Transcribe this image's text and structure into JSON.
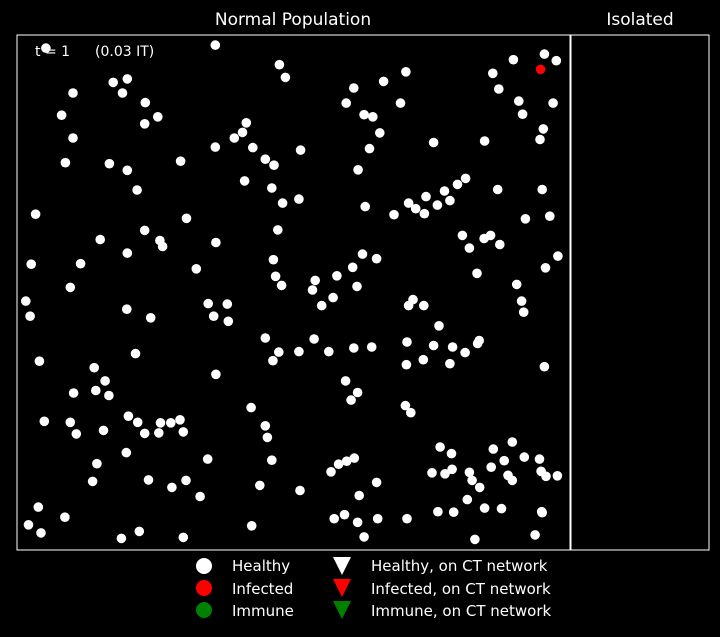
{
  "chart_data": {
    "type": "scatter",
    "panels": {
      "population_title": "Normal Population",
      "isolated_title": "Isolated"
    },
    "time_label": "t = 1",
    "time_fraction": "(0.03 IT)",
    "colors": {
      "background": "#000000",
      "healthy": "#ffffff",
      "infected": "#ff0000",
      "immune": "#008000",
      "frame": "#ffffff"
    },
    "legend": [
      {
        "label": "Healthy",
        "marker": "circle",
        "color": "#ffffff"
      },
      {
        "label": "Infected",
        "marker": "circle",
        "color": "#ff0000"
      },
      {
        "label": "Immune",
        "marker": "circle",
        "color": "#008000"
      },
      {
        "label": "Healthy, on CT network",
        "marker": "triangle",
        "color": "#ffffff"
      },
      {
        "label": "Infected, on CT network",
        "marker": "triangle",
        "color": "#ff0000"
      },
      {
        "label": "Immune, on CT network",
        "marker": "triangle",
        "color": "#008000"
      }
    ],
    "xlim": [
      0,
      1
    ],
    "ylim": [
      0,
      1
    ],
    "isolated_count": 0,
    "points": [
      {
        "x": 0.044,
        "y": 0.984,
        "s": "healthy"
      },
      {
        "x": 0.356,
        "y": 0.99,
        "s": "healthy"
      },
      {
        "x": 0.962,
        "y": 0.972,
        "s": "healthy"
      },
      {
        "x": 0.984,
        "y": 0.959,
        "s": "healthy"
      },
      {
        "x": 0.905,
        "y": 0.961,
        "s": "healthy"
      },
      {
        "x": 0.955,
        "y": 0.942,
        "s": "infected"
      },
      {
        "x": 0.474,
        "y": 0.951,
        "s": "healthy"
      },
      {
        "x": 0.485,
        "y": 0.926,
        "s": "healthy"
      },
      {
        "x": 0.867,
        "y": 0.934,
        "s": "healthy"
      },
      {
        "x": 0.707,
        "y": 0.937,
        "s": "healthy"
      },
      {
        "x": 0.194,
        "y": 0.923,
        "s": "healthy"
      },
      {
        "x": 0.168,
        "y": 0.916,
        "s": "healthy"
      },
      {
        "x": 0.611,
        "y": 0.905,
        "s": "healthy"
      },
      {
        "x": 0.666,
        "y": 0.918,
        "s": "healthy"
      },
      {
        "x": 0.185,
        "y": 0.895,
        "s": "healthy"
      },
      {
        "x": 0.094,
        "y": 0.895,
        "s": "healthy"
      },
      {
        "x": 0.878,
        "y": 0.903,
        "s": "healthy"
      },
      {
        "x": 0.915,
        "y": 0.879,
        "s": "healthy"
      },
      {
        "x": 0.978,
        "y": 0.875,
        "s": "healthy"
      },
      {
        "x": 0.227,
        "y": 0.876,
        "s": "healthy"
      },
      {
        "x": 0.597,
        "y": 0.875,
        "s": "healthy"
      },
      {
        "x": 0.697,
        "y": 0.875,
        "s": "healthy"
      },
      {
        "x": 0.63,
        "y": 0.852,
        "s": "healthy"
      },
      {
        "x": 0.922,
        "y": 0.853,
        "s": "healthy"
      },
      {
        "x": 0.073,
        "y": 0.851,
        "s": "healthy"
      },
      {
        "x": 0.25,
        "y": 0.848,
        "s": "healthy"
      },
      {
        "x": 0.226,
        "y": 0.834,
        "s": "healthy"
      },
      {
        "x": 0.646,
        "y": 0.848,
        "s": "healthy"
      },
      {
        "x": 0.413,
        "y": 0.836,
        "s": "healthy"
      },
      {
        "x": 0.406,
        "y": 0.817,
        "s": "healthy"
      },
      {
        "x": 0.659,
        "y": 0.816,
        "s": "healthy"
      },
      {
        "x": 0.96,
        "y": 0.824,
        "s": "healthy"
      },
      {
        "x": 0.094,
        "y": 0.806,
        "s": "healthy"
      },
      {
        "x": 0.391,
        "y": 0.806,
        "s": "healthy"
      },
      {
        "x": 0.852,
        "y": 0.8,
        "s": "healthy"
      },
      {
        "x": 0.954,
        "y": 0.803,
        "s": "healthy"
      },
      {
        "x": 0.758,
        "y": 0.797,
        "s": "healthy"
      },
      {
        "x": 0.425,
        "y": 0.787,
        "s": "healthy"
      },
      {
        "x": 0.356,
        "y": 0.788,
        "s": "healthy"
      },
      {
        "x": 0.64,
        "y": 0.785,
        "s": "healthy"
      },
      {
        "x": 0.448,
        "y": 0.764,
        "s": "healthy"
      },
      {
        "x": 0.513,
        "y": 0.782,
        "s": "healthy"
      },
      {
        "x": 0.08,
        "y": 0.757,
        "s": "healthy"
      },
      {
        "x": 0.292,
        "y": 0.76,
        "s": "healthy"
      },
      {
        "x": 0.464,
        "y": 0.752,
        "s": "healthy"
      },
      {
        "x": 0.161,
        "y": 0.755,
        "s": "healthy"
      },
      {
        "x": 0.194,
        "y": 0.742,
        "s": "healthy"
      },
      {
        "x": 0.619,
        "y": 0.743,
        "s": "healthy"
      },
      {
        "x": 0.817,
        "y": 0.726,
        "s": "healthy"
      },
      {
        "x": 0.802,
        "y": 0.714,
        "s": "healthy"
      },
      {
        "x": 0.41,
        "y": 0.721,
        "s": "healthy"
      },
      {
        "x": 0.46,
        "y": 0.707,
        "s": "healthy"
      },
      {
        "x": 0.778,
        "y": 0.701,
        "s": "healthy"
      },
      {
        "x": 0.876,
        "y": 0.704,
        "s": "healthy"
      },
      {
        "x": 0.958,
        "y": 0.704,
        "s": "healthy"
      },
      {
        "x": 0.212,
        "y": 0.703,
        "s": "healthy"
      },
      {
        "x": 0.744,
        "y": 0.69,
        "s": "healthy"
      },
      {
        "x": 0.48,
        "y": 0.677,
        "s": "healthy"
      },
      {
        "x": 0.632,
        "y": 0.67,
        "s": "healthy"
      },
      {
        "x": 0.712,
        "y": 0.677,
        "s": "healthy"
      },
      {
        "x": 0.51,
        "y": 0.685,
        "s": "healthy"
      },
      {
        "x": 0.725,
        "y": 0.666,
        "s": "healthy"
      },
      {
        "x": 0.765,
        "y": 0.673,
        "s": "healthy"
      },
      {
        "x": 0.788,
        "y": 0.682,
        "s": "healthy"
      },
      {
        "x": 0.025,
        "y": 0.655,
        "s": "healthy"
      },
      {
        "x": 0.685,
        "y": 0.654,
        "s": "healthy"
      },
      {
        "x": 0.741,
        "y": 0.656,
        "s": "healthy"
      },
      {
        "x": 0.972,
        "y": 0.651,
        "s": "healthy"
      },
      {
        "x": 0.927,
        "y": 0.646,
        "s": "healthy"
      },
      {
        "x": 0.303,
        "y": 0.647,
        "s": "healthy"
      },
      {
        "x": 0.471,
        "y": 0.624,
        "s": "healthy"
      },
      {
        "x": 0.226,
        "y": 0.623,
        "s": "healthy"
      },
      {
        "x": 0.863,
        "y": 0.613,
        "s": "healthy"
      },
      {
        "x": 0.254,
        "y": 0.603,
        "s": "healthy"
      },
      {
        "x": 0.851,
        "y": 0.607,
        "s": "healthy"
      },
      {
        "x": 0.811,
        "y": 0.613,
        "s": "healthy"
      },
      {
        "x": 0.88,
        "y": 0.595,
        "s": "healthy"
      },
      {
        "x": 0.144,
        "y": 0.605,
        "s": "healthy"
      },
      {
        "x": 0.259,
        "y": 0.591,
        "s": "healthy"
      },
      {
        "x": 0.357,
        "y": 0.599,
        "s": "healthy"
      },
      {
        "x": 0.824,
        "y": 0.588,
        "s": "healthy"
      },
      {
        "x": 0.194,
        "y": 0.578,
        "s": "healthy"
      },
      {
        "x": 0.627,
        "y": 0.576,
        "s": "healthy"
      },
      {
        "x": 0.987,
        "y": 0.572,
        "s": "healthy"
      },
      {
        "x": 0.463,
        "y": 0.565,
        "s": "healthy"
      },
      {
        "x": 0.017,
        "y": 0.556,
        "s": "healthy"
      },
      {
        "x": 0.108,
        "y": 0.557,
        "s": "healthy"
      },
      {
        "x": 0.964,
        "y": 0.549,
        "s": "healthy"
      },
      {
        "x": 0.609,
        "y": 0.55,
        "s": "healthy"
      },
      {
        "x": 0.653,
        "y": 0.567,
        "s": "healthy"
      },
      {
        "x": 0.321,
        "y": 0.547,
        "s": "healthy"
      },
      {
        "x": 0.838,
        "y": 0.538,
        "s": "healthy"
      },
      {
        "x": 0.467,
        "y": 0.532,
        "s": "healthy"
      },
      {
        "x": 0.54,
        "y": 0.524,
        "s": "healthy"
      },
      {
        "x": 0.58,
        "y": 0.533,
        "s": "healthy"
      },
      {
        "x": 0.617,
        "y": 0.512,
        "s": "healthy"
      },
      {
        "x": 0.911,
        "y": 0.516,
        "s": "healthy"
      },
      {
        "x": 0.478,
        "y": 0.514,
        "s": "healthy"
      },
      {
        "x": 0.007,
        "y": 0.483,
        "s": "healthy"
      },
      {
        "x": 0.089,
        "y": 0.51,
        "s": "healthy"
      },
      {
        "x": 0.535,
        "y": 0.505,
        "s": "healthy"
      },
      {
        "x": 0.92,
        "y": 0.483,
        "s": "healthy"
      },
      {
        "x": 0.573,
        "y": 0.49,
        "s": "healthy"
      },
      {
        "x": 0.72,
        "y": 0.486,
        "s": "healthy"
      },
      {
        "x": 0.712,
        "y": 0.474,
        "s": "healthy"
      },
      {
        "x": 0.74,
        "y": 0.474,
        "s": "healthy"
      },
      {
        "x": 0.343,
        "y": 0.478,
        "s": "healthy"
      },
      {
        "x": 0.378,
        "y": 0.477,
        "s": "healthy"
      },
      {
        "x": 0.552,
        "y": 0.474,
        "s": "healthy"
      },
      {
        "x": 0.193,
        "y": 0.467,
        "s": "healthy"
      },
      {
        "x": 0.015,
        "y": 0.453,
        "s": "healthy"
      },
      {
        "x": 0.924,
        "y": 0.461,
        "s": "healthy"
      },
      {
        "x": 0.353,
        "y": 0.453,
        "s": "healthy"
      },
      {
        "x": 0.237,
        "y": 0.45,
        "s": "healthy"
      },
      {
        "x": 0.38,
        "y": 0.443,
        "s": "healthy"
      },
      {
        "x": 0.768,
        "y": 0.434,
        "s": "healthy"
      },
      {
        "x": 0.448,
        "y": 0.41,
        "s": "healthy"
      },
      {
        "x": 0.842,
        "y": 0.405,
        "s": "healthy"
      },
      {
        "x": 0.538,
        "y": 0.408,
        "s": "healthy"
      },
      {
        "x": 0.709,
        "y": 0.402,
        "s": "healthy"
      },
      {
        "x": 0.758,
        "y": 0.395,
        "s": "healthy"
      },
      {
        "x": 0.611,
        "y": 0.39,
        "s": "healthy"
      },
      {
        "x": 0.644,
        "y": 0.392,
        "s": "healthy"
      },
      {
        "x": 0.793,
        "y": 0.392,
        "s": "healthy"
      },
      {
        "x": 0.839,
        "y": 0.399,
        "s": "healthy"
      },
      {
        "x": 0.473,
        "y": 0.382,
        "s": "healthy"
      },
      {
        "x": 0.51,
        "y": 0.383,
        "s": "healthy"
      },
      {
        "x": 0.565,
        "y": 0.383,
        "s": "healthy"
      },
      {
        "x": 0.209,
        "y": 0.379,
        "s": "healthy"
      },
      {
        "x": 0.816,
        "y": 0.381,
        "s": "healthy"
      },
      {
        "x": 0.032,
        "y": 0.364,
        "s": "healthy"
      },
      {
        "x": 0.739,
        "y": 0.367,
        "s": "healthy"
      },
      {
        "x": 0.462,
        "y": 0.365,
        "s": "healthy"
      },
      {
        "x": 0.708,
        "y": 0.357,
        "s": "healthy"
      },
      {
        "x": 0.962,
        "y": 0.353,
        "s": "healthy"
      },
      {
        "x": 0.788,
        "y": 0.359,
        "s": "healthy"
      },
      {
        "x": 0.133,
        "y": 0.351,
        "s": "healthy"
      },
      {
        "x": 0.357,
        "y": 0.338,
        "s": "healthy"
      },
      {
        "x": 0.153,
        "y": 0.325,
        "s": "healthy"
      },
      {
        "x": 0.596,
        "y": 0.325,
        "s": "healthy"
      },
      {
        "x": 0.136,
        "y": 0.306,
        "s": "healthy"
      },
      {
        "x": 0.095,
        "y": 0.301,
        "s": "healthy"
      },
      {
        "x": 0.16,
        "y": 0.296,
        "s": "healthy"
      },
      {
        "x": 0.618,
        "y": 0.302,
        "s": "healthy"
      },
      {
        "x": 0.606,
        "y": 0.287,
        "s": "healthy"
      },
      {
        "x": 0.706,
        "y": 0.276,
        "s": "healthy"
      },
      {
        "x": 0.422,
        "y": 0.272,
        "s": "healthy"
      },
      {
        "x": 0.716,
        "y": 0.262,
        "s": "healthy"
      },
      {
        "x": 0.196,
        "y": 0.255,
        "s": "healthy"
      },
      {
        "x": 0.041,
        "y": 0.245,
        "s": "healthy"
      },
      {
        "x": 0.089,
        "y": 0.243,
        "s": "healthy"
      },
      {
        "x": 0.291,
        "y": 0.248,
        "s": "healthy"
      },
      {
        "x": 0.274,
        "y": 0.242,
        "s": "healthy"
      },
      {
        "x": 0.255,
        "y": 0.242,
        "s": "healthy"
      },
      {
        "x": 0.252,
        "y": 0.222,
        "s": "healthy"
      },
      {
        "x": 0.213,
        "y": 0.243,
        "s": "healthy"
      },
      {
        "x": 0.15,
        "y": 0.227,
        "s": "healthy"
      },
      {
        "x": 0.1,
        "y": 0.22,
        "s": "healthy"
      },
      {
        "x": 0.226,
        "y": 0.221,
        "s": "healthy"
      },
      {
        "x": 0.448,
        "y": 0.236,
        "s": "healthy"
      },
      {
        "x": 0.297,
        "y": 0.224,
        "s": "healthy"
      },
      {
        "x": 0.903,
        "y": 0.204,
        "s": "healthy"
      },
      {
        "x": 0.868,
        "y": 0.19,
        "s": "healthy"
      },
      {
        "x": 0.77,
        "y": 0.194,
        "s": "healthy"
      },
      {
        "x": 0.192,
        "y": 0.183,
        "s": "healthy"
      },
      {
        "x": 0.452,
        "y": 0.213,
        "s": "healthy"
      },
      {
        "x": 0.791,
        "y": 0.181,
        "s": "healthy"
      },
      {
        "x": 0.925,
        "y": 0.174,
        "s": "healthy"
      },
      {
        "x": 0.888,
        "y": 0.167,
        "s": "healthy"
      },
      {
        "x": 0.953,
        "y": 0.17,
        "s": "healthy"
      },
      {
        "x": 0.956,
        "y": 0.146,
        "s": "healthy"
      },
      {
        "x": 0.342,
        "y": 0.17,
        "s": "healthy"
      },
      {
        "x": 0.46,
        "y": 0.168,
        "s": "healthy"
      },
      {
        "x": 0.612,
        "y": 0.172,
        "s": "healthy"
      },
      {
        "x": 0.583,
        "y": 0.16,
        "s": "healthy"
      },
      {
        "x": 0.598,
        "y": 0.166,
        "s": "healthy"
      },
      {
        "x": 0.864,
        "y": 0.154,
        "s": "healthy"
      },
      {
        "x": 0.138,
        "y": 0.161,
        "s": "healthy"
      },
      {
        "x": 0.569,
        "y": 0.145,
        "s": "healthy"
      },
      {
        "x": 0.792,
        "y": 0.15,
        "s": "healthy"
      },
      {
        "x": 0.824,
        "y": 0.144,
        "s": "healthy"
      },
      {
        "x": 0.13,
        "y": 0.126,
        "s": "healthy"
      },
      {
        "x": 0.965,
        "y": 0.136,
        "s": "healthy"
      },
      {
        "x": 0.986,
        "y": 0.137,
        "s": "healthy"
      },
      {
        "x": 0.755,
        "y": 0.143,
        "s": "healthy"
      },
      {
        "x": 0.779,
        "y": 0.141,
        "s": "healthy"
      },
      {
        "x": 0.512,
        "y": 0.108,
        "s": "healthy"
      },
      {
        "x": 0.653,
        "y": 0.124,
        "s": "healthy"
      },
      {
        "x": 0.302,
        "y": 0.128,
        "s": "healthy"
      },
      {
        "x": 0.233,
        "y": 0.129,
        "s": "healthy"
      },
      {
        "x": 0.438,
        "y": 0.118,
        "s": "healthy"
      },
      {
        "x": 0.276,
        "y": 0.114,
        "s": "healthy"
      },
      {
        "x": 0.843,
        "y": 0.114,
        "s": "healthy"
      },
      {
        "x": 0.903,
        "y": 0.128,
        "s": "healthy"
      },
      {
        "x": 0.829,
        "y": 0.128,
        "s": "healthy"
      },
      {
        "x": 0.895,
        "y": 0.138,
        "s": "healthy"
      },
      {
        "x": 0.328,
        "y": 0.096,
        "s": "healthy"
      },
      {
        "x": 0.03,
        "y": 0.075,
        "s": "healthy"
      },
      {
        "x": 0.621,
        "y": 0.098,
        "s": "healthy"
      },
      {
        "x": 0.82,
        "y": 0.09,
        "s": "healthy"
      },
      {
        "x": 0.852,
        "y": 0.073,
        "s": "healthy"
      },
      {
        "x": 0.883,
        "y": 0.072,
        "s": "healthy"
      },
      {
        "x": 0.958,
        "y": 0.064,
        "s": "healthy"
      },
      {
        "x": 0.795,
        "y": 0.065,
        "s": "healthy"
      },
      {
        "x": 0.079,
        "y": 0.055,
        "s": "healthy"
      },
      {
        "x": 0.594,
        "y": 0.06,
        "s": "healthy"
      },
      {
        "x": 0.618,
        "y": 0.045,
        "s": "healthy"
      },
      {
        "x": 0.575,
        "y": 0.052,
        "s": "healthy"
      },
      {
        "x": 0.655,
        "y": 0.052,
        "s": "healthy"
      },
      {
        "x": 0.709,
        "y": 0.052,
        "s": "healthy"
      },
      {
        "x": 0.766,
        "y": 0.066,
        "s": "healthy"
      },
      {
        "x": 0.423,
        "y": 0.038,
        "s": "healthy"
      },
      {
        "x": 0.957,
        "y": 0.066,
        "s": "healthy"
      },
      {
        "x": 0.012,
        "y": 0.04,
        "s": "healthy"
      },
      {
        "x": 0.035,
        "y": 0.024,
        "s": "healthy"
      },
      {
        "x": 0.216,
        "y": 0.027,
        "s": "healthy"
      },
      {
        "x": 0.183,
        "y": 0.013,
        "s": "healthy"
      },
      {
        "x": 0.297,
        "y": 0.015,
        "s": "healthy"
      },
      {
        "x": 0.63,
        "y": 0.016,
        "s": "healthy"
      },
      {
        "x": 0.834,
        "y": 0.011,
        "s": "healthy"
      },
      {
        "x": 0.945,
        "y": 0.02,
        "s": "healthy"
      }
    ]
  }
}
